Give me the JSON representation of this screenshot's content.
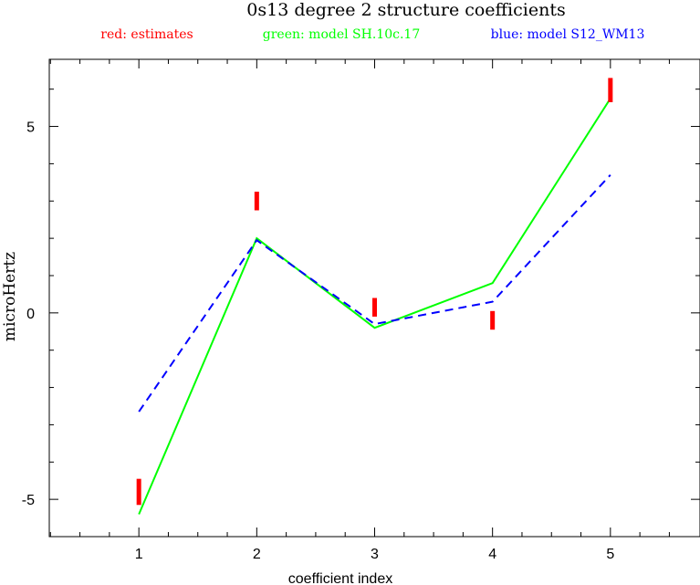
{
  "chart_data": {
    "type": "line",
    "title": "0s13 degree 2 structure coefficients",
    "legend": [
      {
        "text": "red: estimates",
        "color": "#ff0000"
      },
      {
        "text": "green: model SH.10c.17",
        "color": "#00ff00"
      },
      {
        "text": "blue: model S12_WM13",
        "color": "#0000ff"
      }
    ],
    "legend_position": "top",
    "xlabel": "coefficient index",
    "ylabel": "microHertz",
    "xlim": [
      0.24,
      5.76
    ],
    "ylim": [
      -6.0,
      6.8
    ],
    "x_ticks": [
      1,
      2,
      3,
      4,
      5
    ],
    "x_tick_labels": [
      "1",
      "2",
      "3",
      "4",
      "5"
    ],
    "y_ticks": [
      -5,
      0,
      5
    ],
    "y_tick_labels": [
      "-5",
      "0",
      "5"
    ],
    "grid": false,
    "estimates": {
      "color": "#ff0000",
      "points": [
        {
          "x": 1,
          "low": -5.15,
          "high": -4.45
        },
        {
          "x": 2,
          "low": 2.75,
          "high": 3.25
        },
        {
          "x": 3,
          "low": -0.1,
          "high": 0.4
        },
        {
          "x": 4,
          "low": -0.45,
          "high": 0.05
        },
        {
          "x": 5,
          "low": 5.65,
          "high": 6.3
        }
      ]
    },
    "series": [
      {
        "color": "#00ff00",
        "style": "solid",
        "x": [
          1,
          2,
          3,
          4,
          5
        ],
        "y": [
          -5.4,
          2.0,
          -0.4,
          0.8,
          5.75
        ]
      },
      {
        "color": "#0000ff",
        "style": "dashed",
        "x": [
          1,
          2,
          3,
          4,
          5
        ],
        "y": [
          -2.65,
          1.95,
          -0.3,
          0.3,
          3.7
        ]
      }
    ]
  }
}
